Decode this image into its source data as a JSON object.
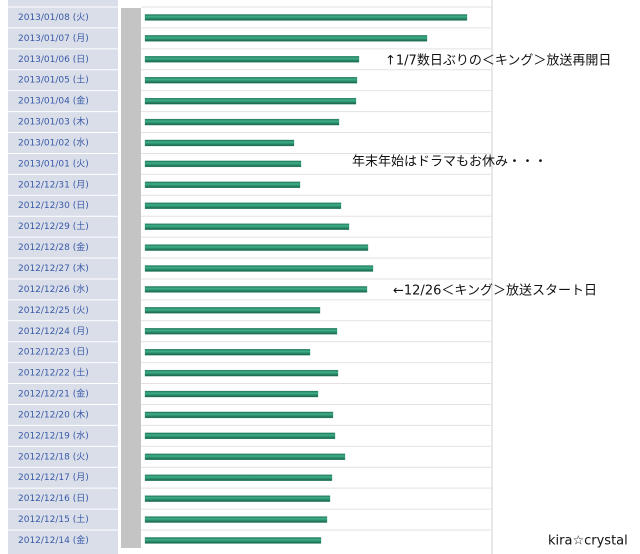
{
  "chart_data": {
    "type": "bar",
    "orientation": "horizontal",
    "categories": [
      "2013/01/08 (火)",
      "2013/01/07 (月)",
      "2013/01/06 (日)",
      "2013/01/05 (土)",
      "2013/01/04 (金)",
      "2013/01/03 (木)",
      "2013/01/02 (水)",
      "2013/01/01 (火)",
      "2012/12/31 (月)",
      "2012/12/30 (日)",
      "2012/12/29 (土)",
      "2012/12/28 (金)",
      "2012/12/27 (木)",
      "2012/12/26 (水)",
      "2012/12/25 (火)",
      "2012/12/24 (月)",
      "2012/12/23 (日)",
      "2012/12/22 (土)",
      "2012/12/21 (金)",
      "2012/12/20 (木)",
      "2012/12/19 (水)",
      "2012/12/18 (火)",
      "2012/12/17 (月)",
      "2012/12/16 (日)",
      "2012/12/15 (土)",
      "2012/12/14 (金)"
    ],
    "values": [
      322,
      282,
      214,
      212,
      211,
      194,
      149,
      156,
      155,
      196,
      204,
      223,
      228,
      222,
      175,
      192,
      165,
      193,
      173,
      188,
      190,
      200,
      187,
      185,
      182,
      176
    ],
    "color": "#2a8c6c",
    "xlim": [
      0,
      347
    ],
    "annotations": [
      "↑1/7数日ぶりの＜キング＞放送再開日",
      "年末年始はドラマもお休み・・・",
      "←12/26＜キング＞放送スタート日",
      "kira☆crystal"
    ]
  }
}
